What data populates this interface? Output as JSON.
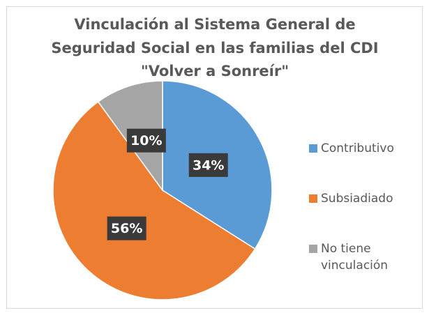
{
  "chart_data": {
    "type": "pie",
    "title": [
      "Vinculación al Sistema General de",
      "Seguridad Social en las familias del CDI",
      "\"Volver a Sonreír\""
    ],
    "categories": [
      "Contributivo",
      "Subsiadiado",
      "No tiene vinculación"
    ],
    "values": [
      34,
      56,
      10
    ],
    "value_labels": [
      "34%",
      "56%",
      "10%"
    ],
    "colors": [
      "#5b9bd5",
      "#ed7d31",
      "#a5a5a5"
    ],
    "legend": "right"
  }
}
